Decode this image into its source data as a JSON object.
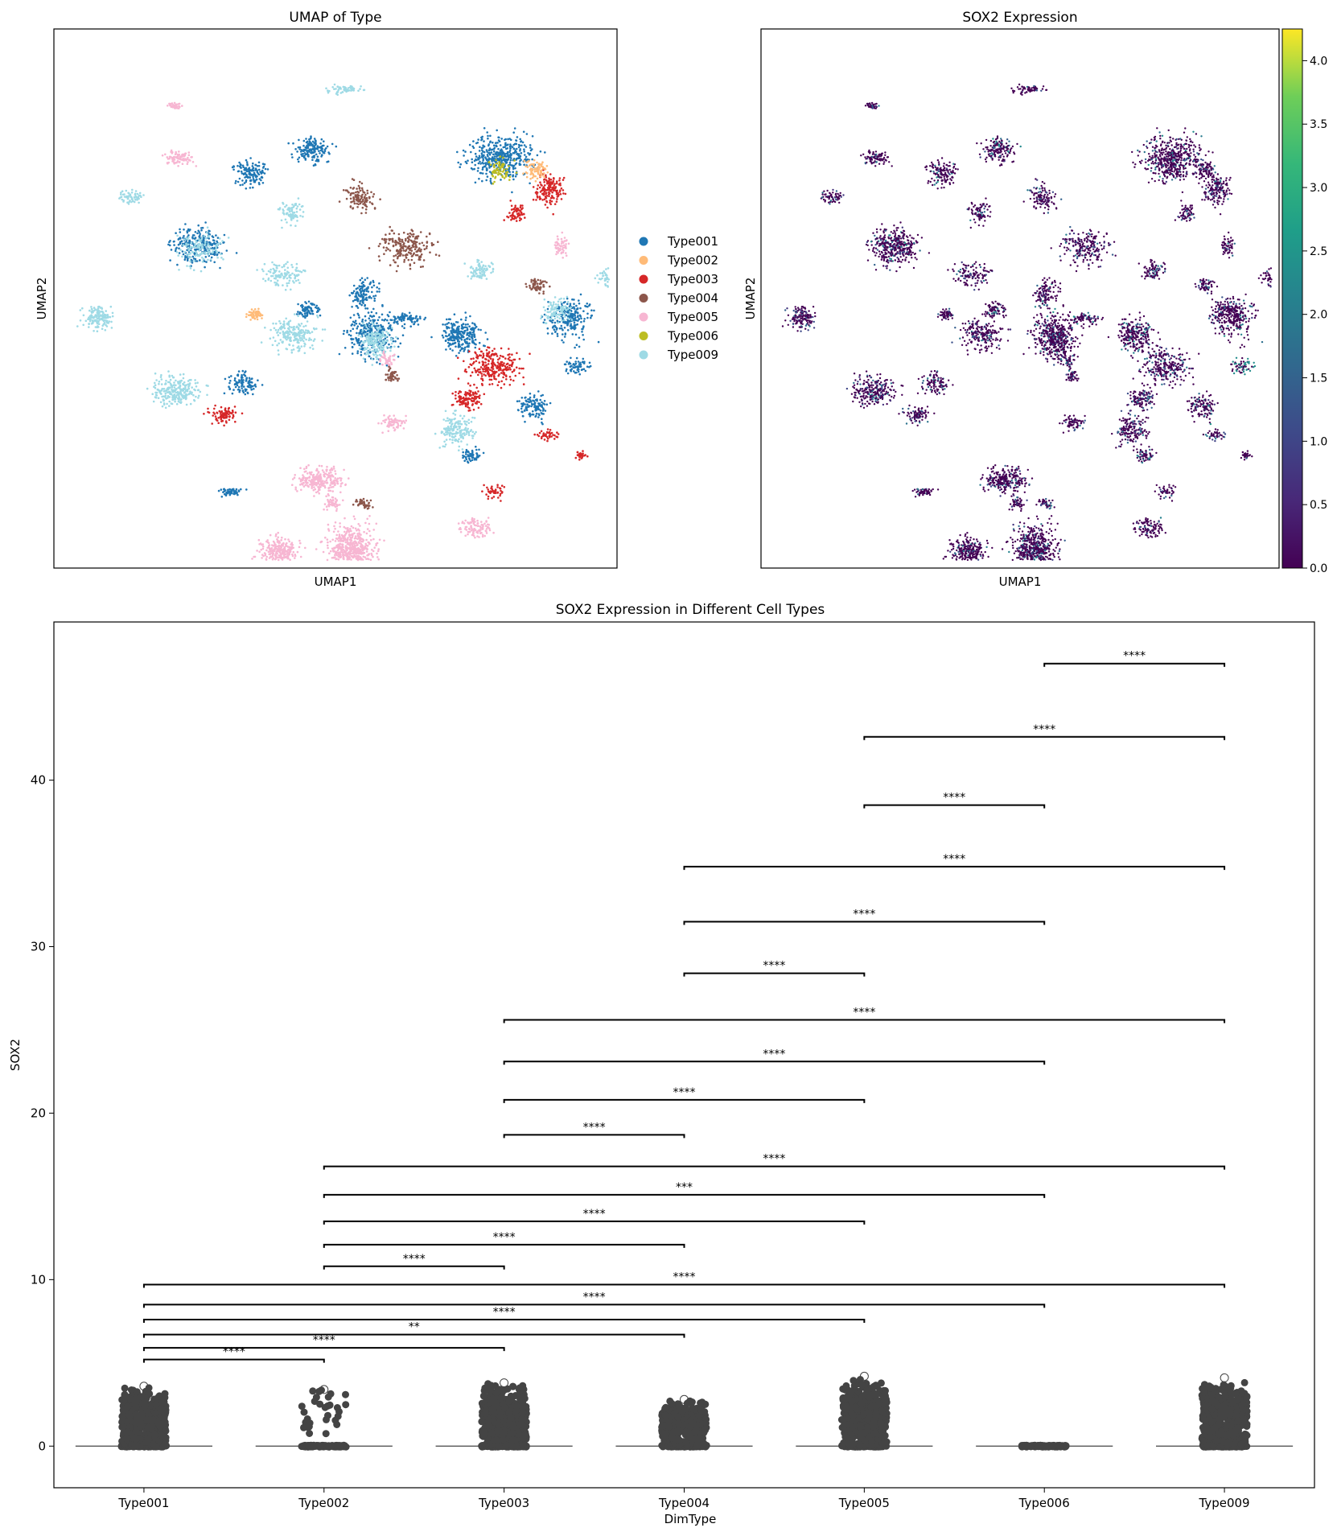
{
  "chart_data": [
    {
      "type": "scatter",
      "title": "UMAP of Type",
      "xlabel": "UMAP1",
      "ylabel": "UMAP2",
      "xticks": false,
      "yticks": false,
      "legend": {
        "placement": "right-outside",
        "entries": [
          {
            "name": "Type001",
            "color": "#1f77b4"
          },
          {
            "name": "Type002",
            "color": "#ffbb78"
          },
          {
            "name": "Type003",
            "color": "#d62728"
          },
          {
            "name": "Type004",
            "color": "#8c564b"
          },
          {
            "name": "Type005",
            "color": "#f7b6d2"
          },
          {
            "name": "Type006",
            "color": "#bcbd22"
          },
          {
            "name": "Type009",
            "color": "#9edae5"
          }
        ]
      }
    },
    {
      "type": "scatter",
      "title": "SOX2 Expression",
      "xlabel": "UMAP1",
      "ylabel": "UMAP2",
      "colormap": "viridis",
      "colorbar": {
        "range": [
          0.0,
          4.25
        ],
        "ticks": [
          "0.0",
          "0.5",
          "1.0",
          "1.5",
          "2.0",
          "2.5",
          "3.0",
          "3.5",
          "4.0"
        ]
      }
    },
    {
      "type": "box_strip",
      "title": "SOX2 Expression in Different Cell Types",
      "xlabel": "DimType",
      "ylabel": "SOX2",
      "ylim": [
        -2.5,
        49.5
      ],
      "yticks": [
        0,
        10,
        20,
        30,
        40
      ],
      "categories": [
        "Type001",
        "Type002",
        "Type003",
        "Type004",
        "Type005",
        "Type006",
        "Type009"
      ],
      "max_values": [
        3.6,
        3.4,
        3.8,
        2.8,
        4.2,
        0.0,
        4.1
      ],
      "comparisons": [
        {
          "a": 0,
          "b": 1,
          "y": 5.2,
          "label": "****"
        },
        {
          "a": 0,
          "b": 2,
          "y": 5.9,
          "label": "****"
        },
        {
          "a": 0,
          "b": 3,
          "y": 6.7,
          "label": "**"
        },
        {
          "a": 0,
          "b": 4,
          "y": 7.6,
          "label": "****"
        },
        {
          "a": 0,
          "b": 5,
          "y": 8.5,
          "label": "****"
        },
        {
          "a": 0,
          "b": 6,
          "y": 9.7,
          "label": "****"
        },
        {
          "a": 1,
          "b": 2,
          "y": 10.8,
          "label": "****"
        },
        {
          "a": 1,
          "b": 3,
          "y": 12.1,
          "label": "****"
        },
        {
          "a": 1,
          "b": 4,
          "y": 13.5,
          "label": "****"
        },
        {
          "a": 1,
          "b": 5,
          "y": 15.1,
          "label": "***"
        },
        {
          "a": 1,
          "b": 6,
          "y": 16.8,
          "label": "****"
        },
        {
          "a": 2,
          "b": 3,
          "y": 18.7,
          "label": "****"
        },
        {
          "a": 2,
          "b": 4,
          "y": 20.8,
          "label": "****"
        },
        {
          "a": 2,
          "b": 5,
          "y": 23.1,
          "label": "****"
        },
        {
          "a": 2,
          "b": 6,
          "y": 25.6,
          "label": "****"
        },
        {
          "a": 3,
          "b": 4,
          "y": 28.4,
          "label": "****"
        },
        {
          "a": 3,
          "b": 5,
          "y": 31.5,
          "label": "****"
        },
        {
          "a": 3,
          "b": 6,
          "y": 34.8,
          "label": "****"
        },
        {
          "a": 4,
          "b": 5,
          "y": 38.5,
          "label": "****"
        },
        {
          "a": 4,
          "b": 6,
          "y": 42.6,
          "label": "****"
        },
        {
          "a": 5,
          "b": 6,
          "y": 47.0,
          "label": "****"
        }
      ]
    }
  ]
}
